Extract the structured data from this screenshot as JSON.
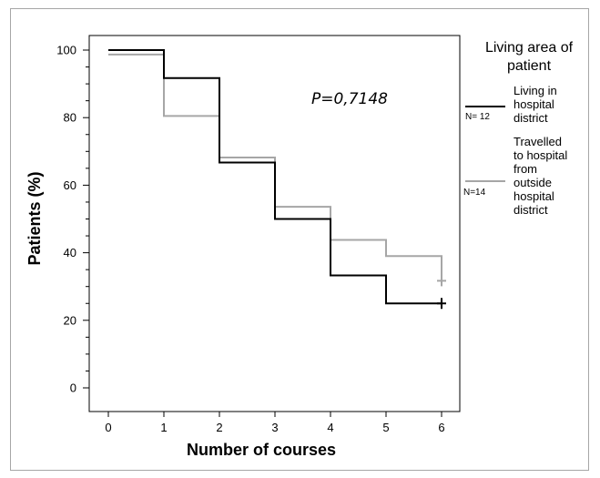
{
  "chart_data": {
    "type": "line",
    "subtype": "step",
    "xlabel": "Number of courses",
    "ylabel": "Patients (%)",
    "xlim": [
      0,
      6
    ],
    "ylim": [
      0,
      100
    ],
    "x_ticks": [
      0,
      1,
      2,
      3,
      4,
      5,
      6
    ],
    "y_ticks": [
      0,
      20,
      40,
      60,
      80,
      100
    ],
    "annotation": "P=0,7148",
    "legend": {
      "title_lines": [
        "Living area of",
        "patient"
      ],
      "placement": "right"
    },
    "series": [
      {
        "name": "Living in hospital district",
        "label_lines": [
          "Living in",
          "hospital",
          "district"
        ],
        "n_label": "N= 12",
        "color": "#000000",
        "x": [
          0,
          1,
          2,
          3,
          4,
          5,
          6
        ],
        "values": [
          100,
          91.7,
          66.7,
          50.0,
          33.3,
          25.0,
          25.0
        ],
        "censor_x": 6,
        "censor_y": 25.0
      },
      {
        "name": "Travelled to hospital from outside hospital district",
        "label_lines": [
          "Travelled",
          "to hospital",
          "from",
          "outside",
          "hospital",
          "district"
        ],
        "n_label": "N=14",
        "color": "#a6a6a6",
        "x": [
          0,
          1,
          2,
          3,
          4,
          5,
          6
        ],
        "values": [
          98.7,
          80.5,
          68.2,
          53.6,
          43.8,
          39.0,
          31.7
        ],
        "censor_x": 6,
        "censor_y": 31.7
      }
    ]
  }
}
